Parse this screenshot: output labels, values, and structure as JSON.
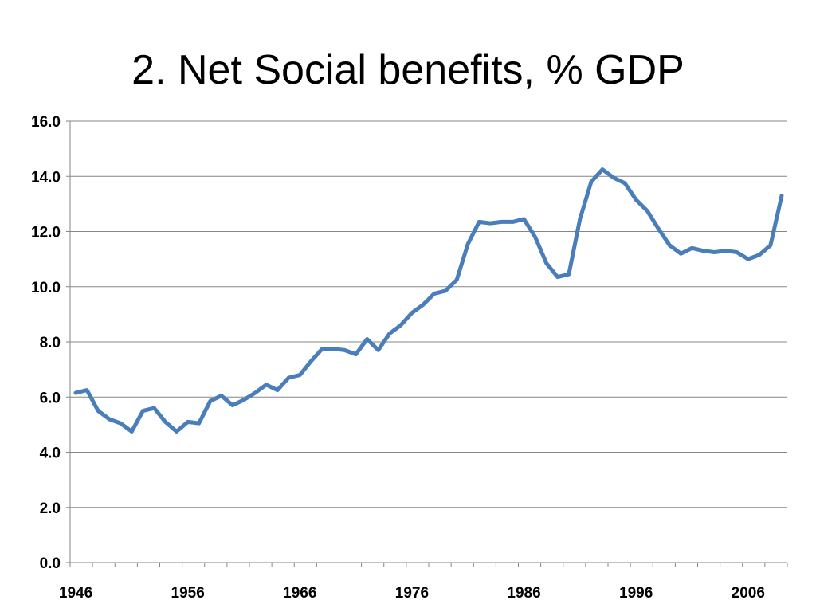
{
  "slide": {
    "title": "2. Net Social benefits, % GDP"
  },
  "chart_data": {
    "type": "line",
    "title": "2. Net Social benefits, % GDP",
    "xlabel": "",
    "ylabel": "",
    "xlim": [
      1946,
      2009
    ],
    "ylim": [
      0,
      16
    ],
    "y_ticks": [
      "0.0",
      "2.0",
      "4.0",
      "6.0",
      "8.0",
      "10.0",
      "12.0",
      "14.0",
      "16.0"
    ],
    "x_ticks": [
      "1946",
      "1956",
      "1966",
      "1976",
      "1986",
      "1996",
      "2006"
    ],
    "grid": "horizontal",
    "legend": "none",
    "colors": {
      "line": "#4a7ebb",
      "grid": "#868686",
      "axis": "#868686"
    },
    "series": [
      {
        "x": [
          1946,
          1947,
          1948,
          1949,
          1950,
          1951,
          1952,
          1953,
          1954,
          1955,
          1956,
          1957,
          1958,
          1959,
          1960,
          1961,
          1962,
          1963,
          1964,
          1965,
          1966,
          1967,
          1968,
          1969,
          1970,
          1971,
          1972,
          1973,
          1974,
          1975,
          1976,
          1977,
          1978,
          1979,
          1980,
          1981,
          1982,
          1983,
          1984,
          1985,
          1986,
          1987,
          1988,
          1989,
          1990,
          1991,
          1992,
          1993,
          1994,
          1995,
          1996,
          1997,
          1998,
          1999,
          2000,
          2001,
          2002,
          2003,
          2004,
          2005,
          2006,
          2007,
          2008,
          2009
        ],
        "values": [
          6.15,
          6.25,
          5.5,
          5.2,
          5.05,
          4.75,
          5.5,
          5.6,
          5.1,
          4.75,
          5.1,
          5.05,
          5.85,
          6.05,
          5.7,
          5.9,
          6.15,
          6.45,
          6.25,
          6.7,
          6.8,
          7.3,
          7.75,
          7.75,
          7.7,
          7.55,
          8.1,
          7.7,
          8.3,
          8.6,
          9.05,
          9.35,
          9.75,
          9.85,
          10.25,
          11.55,
          12.35,
          12.3,
          12.35,
          12.35,
          12.45,
          11.8,
          10.85,
          10.35,
          10.45,
          12.45,
          13.8,
          14.25,
          13.95,
          13.75,
          13.15,
          12.75,
          12.1,
          11.5,
          11.2,
          11.4,
          11.3,
          11.25,
          11.3,
          11.25,
          11.0,
          11.15,
          11.5,
          13.3
        ]
      }
    ]
  }
}
